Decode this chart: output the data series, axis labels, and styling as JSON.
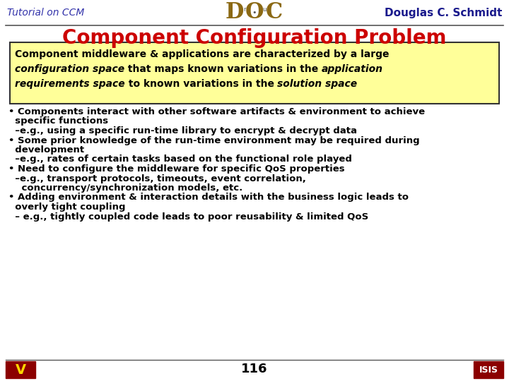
{
  "title": "Component Configuration Problem",
  "title_color": "#CC0000",
  "title_fontsize": 20,
  "header_left": "Tutorial on CCM",
  "header_right": "Douglas C. Schmidt",
  "header_color_left": "#3333AA",
  "header_color_right": "#1A1A8C",
  "header_fontsize": 10,
  "box_bg": "#FFFF99",
  "box_border": "#333333",
  "footer_number": "116",
  "bg_color": "#FFFFFF",
  "text_color": "#000000",
  "bullet_fontsize": 9.5
}
